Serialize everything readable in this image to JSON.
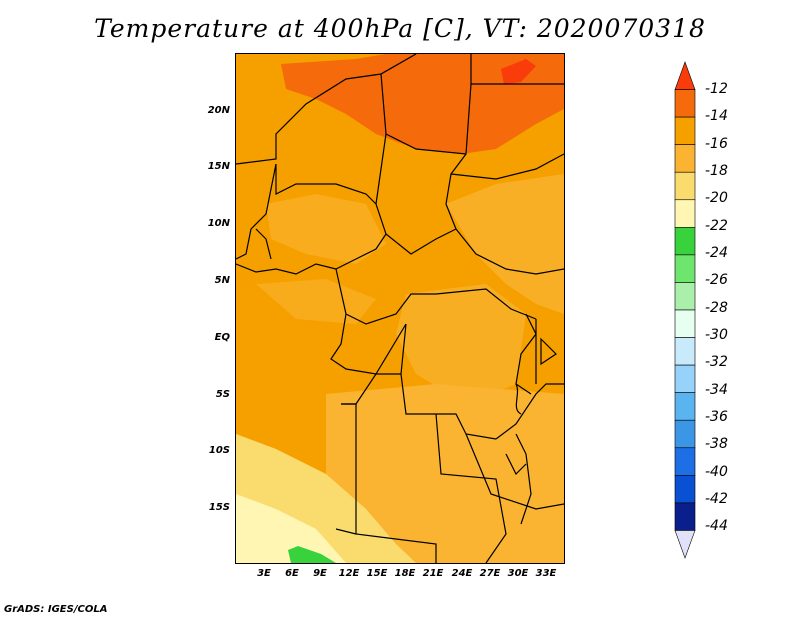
{
  "title": "Temperature at 400hPa [C], VT: 2020070318",
  "footer": "GrADS: IGES/COLA",
  "map": {
    "variable": "Temperature",
    "level": "400hPa",
    "units": "C",
    "valid_time": "2020070318",
    "lat_labels": [
      "20N",
      "15N",
      "10N",
      "5N",
      "EQ",
      "5S",
      "10S",
      "15S"
    ],
    "lon_labels": [
      "3E",
      "6E",
      "9E",
      "12E",
      "15E",
      "18E",
      "21E",
      "24E",
      "27E",
      "30E",
      "33E"
    ]
  },
  "colorbar": {
    "labels": [
      "-12",
      "-14",
      "-16",
      "-18",
      "-20",
      "-22",
      "-24",
      "-26",
      "-28",
      "-30",
      "-32",
      "-34",
      "-36",
      "-38",
      "-40",
      "-42",
      "-44"
    ],
    "colors": [
      "#fa3c0a",
      "#f56a0a",
      "#f6a000",
      "#fab432",
      "#fadc6e",
      "#fff6b4",
      "#37d23c",
      "#6ee66e",
      "#aaf0aa",
      "#e6fff0",
      "#c8eafa",
      "#96d2fa",
      "#5ab4f0",
      "#3c96e6",
      "#1e6ee6",
      "#0a50d2",
      "#0a1e8c",
      "#e1e1fa"
    ]
  }
}
